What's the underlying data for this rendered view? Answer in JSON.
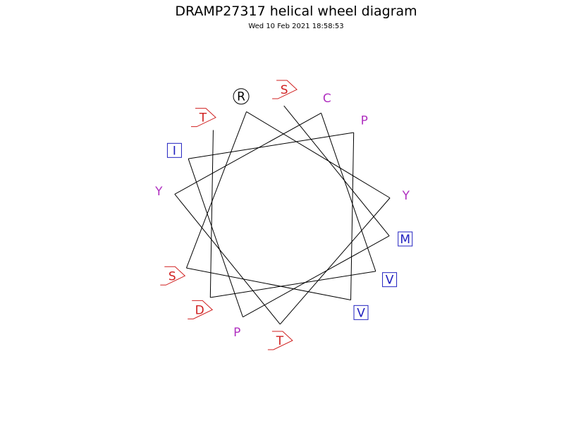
{
  "diagram": {
    "title": "DRAMP27317 helical wheel diagram",
    "timestamp": "Wed 10 Feb 2021 18:58:53",
    "colors": {
      "hydrophobic": "#2020c0",
      "charged": "#000000",
      "polar_uncharged": "#d02020",
      "other": "#b030c0",
      "line": "#000000"
    },
    "residues": [
      {
        "label": "S",
        "style": "pentagon",
        "color": "#d02020"
      },
      {
        "label": "M",
        "style": "square",
        "color": "#2020c0"
      },
      {
        "label": "P",
        "style": "plain",
        "color": "#b030c0"
      },
      {
        "label": "I",
        "style": "square",
        "color": "#2020c0"
      },
      {
        "label": "P",
        "style": "plain",
        "color": "#b030c0"
      },
      {
        "label": "V",
        "style": "square",
        "color": "#2020c0"
      },
      {
        "label": "S",
        "style": "pentagon",
        "color": "#d02020"
      },
      {
        "label": "R",
        "style": "circle",
        "color": "#000000"
      },
      {
        "label": "Y",
        "style": "plain",
        "color": "#b030c0"
      },
      {
        "label": "T",
        "style": "pentagon",
        "color": "#d02020"
      },
      {
        "label": "Y",
        "style": "plain",
        "color": "#b030c0"
      },
      {
        "label": "C",
        "style": "plain",
        "color": "#b030c0"
      },
      {
        "label": "V",
        "style": "square",
        "color": "#2020c0"
      },
      {
        "label": "D",
        "style": "pentagon",
        "color": "#d02020"
      },
      {
        "label": "T",
        "style": "pentagon",
        "color": "#d02020"
      }
    ]
  }
}
